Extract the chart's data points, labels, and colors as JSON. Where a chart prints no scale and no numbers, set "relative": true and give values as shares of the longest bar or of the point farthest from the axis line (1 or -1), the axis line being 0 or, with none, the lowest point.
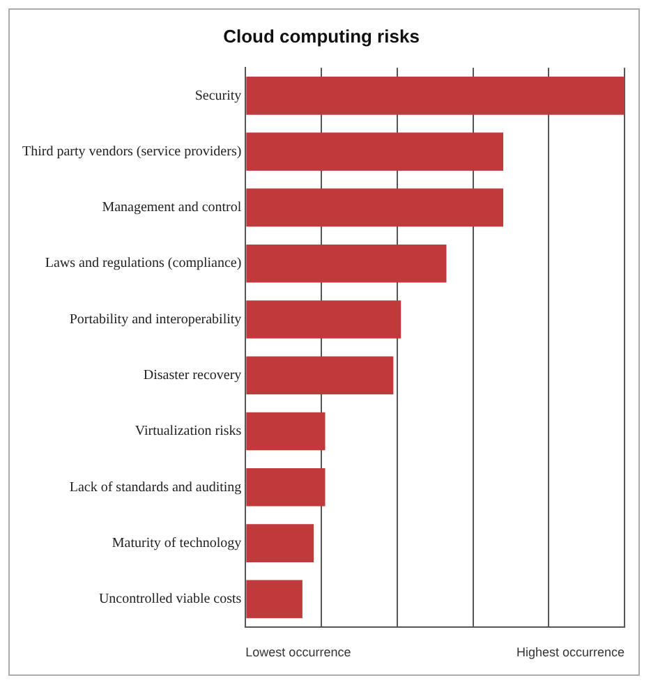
{
  "chart_data": {
    "type": "bar",
    "orientation": "horizontal",
    "relative": true,
    "title": "Cloud computing risks",
    "categories": [
      "Security",
      "Third party vendors (service providers)",
      "Management and control",
      "Laws and regulations (compliance)",
      "Portability and interoperability",
      "Disaster recovery",
      "Virtualization risks",
      "Lack of standards and auditing",
      "Maturity of technology",
      "Uncontrolled viable costs"
    ],
    "values": [
      1,
      0.68,
      0.68,
      0.53,
      0.41,
      0.39,
      0.21,
      0.21,
      0.18,
      0.15
    ],
    "color": "#c0393b",
    "grid": "x",
    "legend": false,
    "annotations": [
      "Lowest occurrence",
      "Highest occurrence"
    ]
  }
}
